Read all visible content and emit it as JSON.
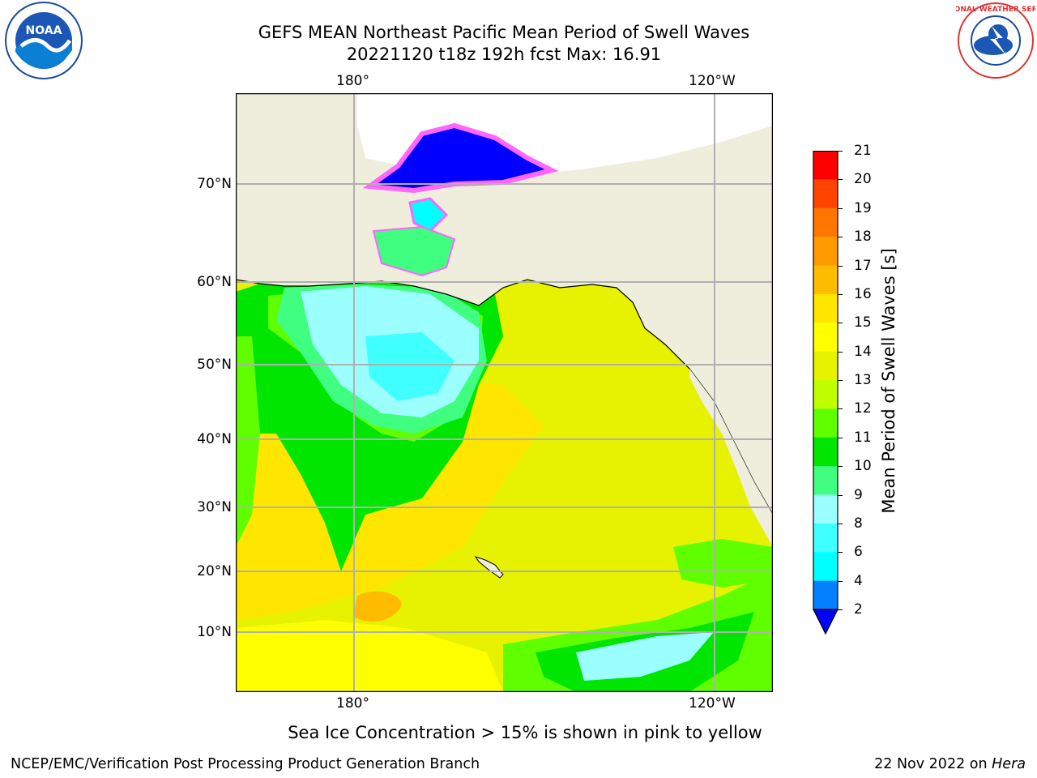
{
  "title": {
    "line1": "GEFS MEAN Northeast Pacific Mean Period of Swell Waves",
    "line2": "20221120 t18z 192h fcst   Max: 16.91"
  },
  "logos": {
    "left": "noara-logo",
    "left_text": "NOAA",
    "right": "national-weather-service-logo",
    "right_text": "NATIONAL WEATHER SERVICE"
  },
  "map": {
    "lon_ticks": [
      "180°",
      "120°W"
    ],
    "lat_ticks": [
      "70°N",
      "60°N",
      "50°N",
      "40°N",
      "30°N",
      "20°N",
      "10°N"
    ],
    "ocean_default_color": "#e6f200",
    "land_color": "#efeddc",
    "grid_color": "#b0b0b0"
  },
  "colorbar": {
    "label": "Mean Period of Swell Waves [s]",
    "ticks": [
      "2",
      "4",
      "6",
      "8",
      "9",
      "10",
      "11",
      "12",
      "13",
      "14",
      "15",
      "16",
      "17",
      "18",
      "19",
      "20",
      "21"
    ],
    "extend_color": "#0000ff",
    "colors": [
      "#0080ff",
      "#00ffff",
      "#40ffff",
      "#9bffff",
      "#40ff80",
      "#00e600",
      "#60ff00",
      "#c0ff00",
      "#e6f200",
      "#ffff00",
      "#ffe600",
      "#ffbb00",
      "#ff9900",
      "#ff7700",
      "#ff4400",
      "#ff0000"
    ]
  },
  "notes": {
    "sea_ice": "Sea Ice Concentration > 15% is shown in pink to yellow"
  },
  "footer": {
    "left": "NCEP/EMC/Verification Post Processing Product Generation Branch",
    "right_prefix": "22 Nov 2022 on ",
    "right_machine": "Hera"
  }
}
